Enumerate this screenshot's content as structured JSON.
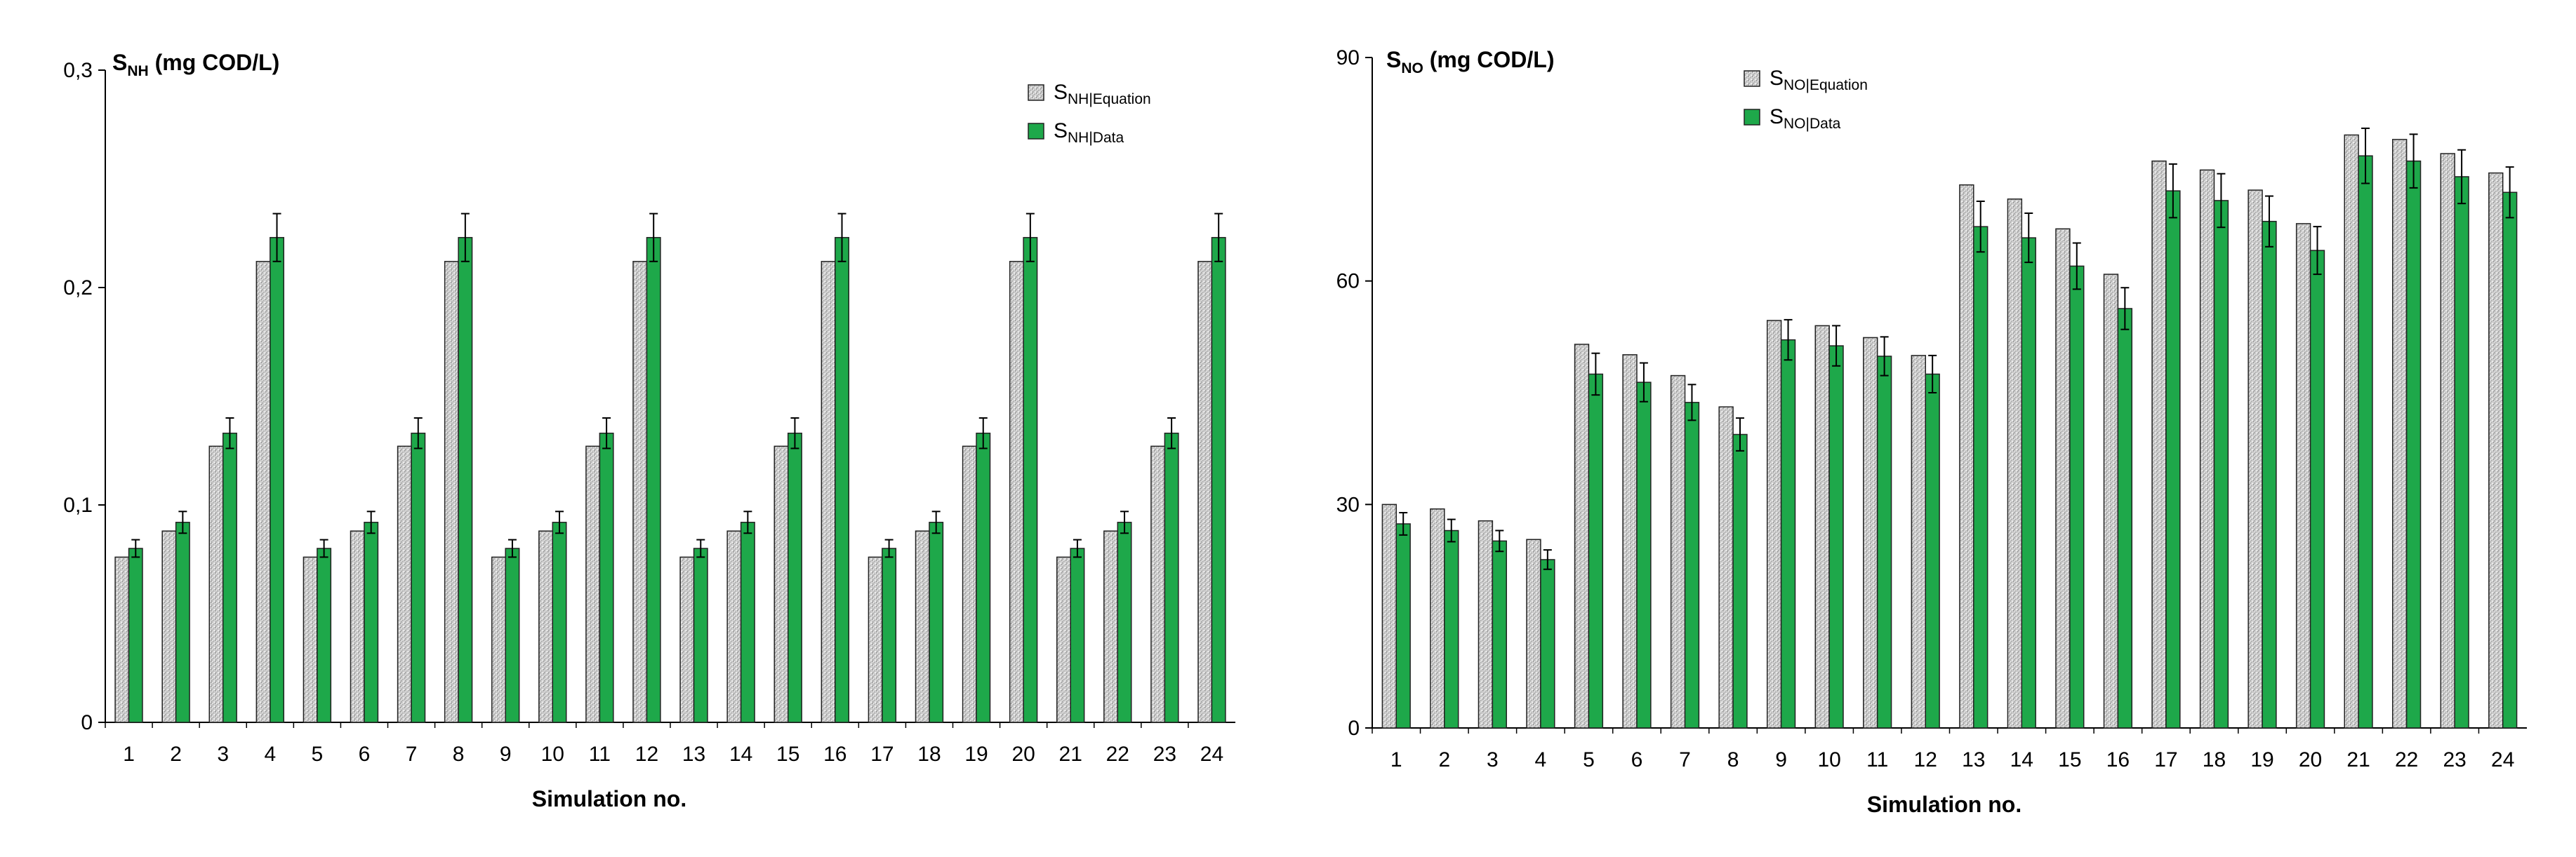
{
  "chart_data": [
    {
      "type": "bar",
      "title_main": "S",
      "title_sub": "NH",
      "title_unit": " (mg COD/L)",
      "xlabel": "Simulation no.",
      "ylim": [
        0,
        0.3
      ],
      "yticks": [
        0,
        0.1,
        0.2,
        0.3
      ],
      "ytick_labels": [
        "0",
        "0,1",
        "0,2",
        "0,3"
      ],
      "categories": [
        "1",
        "2",
        "3",
        "4",
        "5",
        "6",
        "7",
        "8",
        "9",
        "10",
        "11",
        "12",
        "13",
        "14",
        "15",
        "16",
        "17",
        "18",
        "19",
        "20",
        "21",
        "22",
        "23",
        "24"
      ],
      "legend_position": "top-right",
      "series": [
        {
          "name": "S",
          "name_sub": "NH|Equation",
          "color": "#c8c8c8",
          "values": [
            0.076,
            0.088,
            0.127,
            0.212,
            0.076,
            0.088,
            0.127,
            0.212,
            0.076,
            0.088,
            0.127,
            0.212,
            0.076,
            0.088,
            0.127,
            0.212,
            0.076,
            0.088,
            0.127,
            0.212,
            0.076,
            0.088,
            0.127,
            0.212
          ]
        },
        {
          "name": "S",
          "name_sub": "NH|Data",
          "color": "#1ea84a",
          "values": [
            0.08,
            0.092,
            0.133,
            0.223,
            0.08,
            0.092,
            0.133,
            0.223,
            0.08,
            0.092,
            0.133,
            0.223,
            0.08,
            0.092,
            0.133,
            0.223,
            0.08,
            0.092,
            0.133,
            0.223,
            0.08,
            0.092,
            0.133,
            0.223
          ],
          "errors": [
            0.004,
            0.005,
            0.007,
            0.011,
            0.004,
            0.005,
            0.007,
            0.011,
            0.004,
            0.005,
            0.007,
            0.011,
            0.004,
            0.005,
            0.007,
            0.011,
            0.004,
            0.005,
            0.007,
            0.011,
            0.004,
            0.005,
            0.007,
            0.011
          ]
        }
      ]
    },
    {
      "type": "bar",
      "title_main": "S",
      "title_sub": "NO",
      "title_unit": " (mg COD/L)",
      "xlabel": "Simulation no.",
      "ylim": [
        0,
        90
      ],
      "yticks": [
        0,
        30,
        60,
        90
      ],
      "ytick_labels": [
        "0",
        "30",
        "60",
        "90"
      ],
      "categories": [
        "1",
        "2",
        "3",
        "4",
        "5",
        "6",
        "7",
        "8",
        "9",
        "10",
        "11",
        "12",
        "13",
        "14",
        "15",
        "16",
        "17",
        "18",
        "19",
        "20",
        "21",
        "22",
        "23",
        "24"
      ],
      "legend_position": "top-right",
      "series": [
        {
          "name": "S",
          "name_sub": "NO|Equation",
          "color": "#c8c8c8",
          "values": [
            30.0,
            29.4,
            27.8,
            25.3,
            51.5,
            50.1,
            47.3,
            43.1,
            54.7,
            54.0,
            52.4,
            50.0,
            72.9,
            71.0,
            67.0,
            60.9,
            76.1,
            74.9,
            72.2,
            67.7,
            79.6,
            79.0,
            77.1,
            74.5
          ]
        },
        {
          "name": "S",
          "name_sub": "NO|Data",
          "color": "#1ea84a",
          "values": [
            27.4,
            26.5,
            25.1,
            22.6,
            47.5,
            46.4,
            43.7,
            39.4,
            52.1,
            51.3,
            49.9,
            47.5,
            67.3,
            65.8,
            62.0,
            56.3,
            72.1,
            70.8,
            68.0,
            64.1,
            76.8,
            76.1,
            74.0,
            71.9
          ],
          "errors": [
            1.5,
            1.5,
            1.4,
            1.3,
            2.8,
            2.6,
            2.4,
            2.2,
            2.7,
            2.7,
            2.6,
            2.5,
            3.4,
            3.3,
            3.1,
            2.8,
            3.6,
            3.6,
            3.4,
            3.2,
            3.7,
            3.6,
            3.6,
            3.4
          ]
        }
      ]
    }
  ]
}
